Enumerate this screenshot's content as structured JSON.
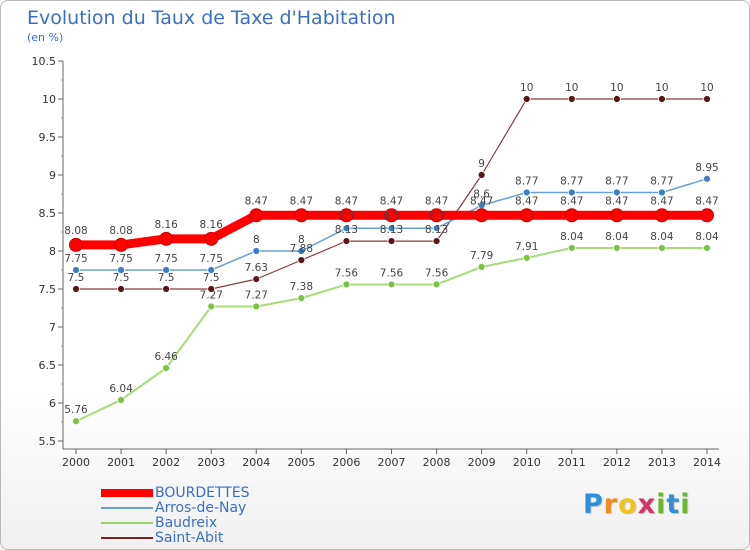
{
  "chart_data": {
    "type": "line",
    "title": "Evolution du Taux de Taxe d'Habitation",
    "subtitle": "(en %)",
    "x": [
      "2000",
      "2001",
      "2002",
      "2003",
      "2004",
      "2005",
      "2006",
      "2007",
      "2008",
      "2009",
      "2010",
      "2011",
      "2012",
      "2013",
      "2014"
    ],
    "ylim": [
      5.5,
      10.5
    ],
    "yticks": [
      "5.5",
      "6",
      "6.5",
      "7",
      "7.5",
      "8",
      "8.5",
      "9",
      "9.5",
      "10",
      "10.5"
    ],
    "grid": false,
    "legend_position": "bottom-left",
    "series": [
      {
        "name": "BOURDETTES",
        "color": "#ff0000",
        "values": [
          8.08,
          8.08,
          8.16,
          8.16,
          8.47,
          8.47,
          8.47,
          8.47,
          8.47,
          8.47,
          8.47,
          8.47,
          8.47,
          8.47,
          8.47
        ],
        "labels": [
          "8.08",
          "8.08",
          "8.16",
          "8.16",
          "8.47",
          "8.47",
          "8.47",
          "8.47",
          "8.47",
          "8.47",
          "8.47",
          "8.47",
          "8.47",
          "8.47",
          "8.47"
        ]
      },
      {
        "name": "Arros-de-Nay",
        "color": "#6aa0d4",
        "values": [
          7.75,
          7.75,
          7.75,
          7.75,
          8,
          8,
          8.3,
          8.3,
          8.3,
          8.6,
          8.77,
          8.77,
          8.77,
          8.77,
          8.95
        ],
        "labels": [
          "7.75",
          "7.75",
          "7.75",
          "7.75",
          "8",
          "8",
          "8.3",
          "8.3",
          "8.3",
          "8.6",
          "8.77",
          "8.77",
          "8.77",
          "8.77",
          "8.95"
        ]
      },
      {
        "name": "Baudreix",
        "color": "#99d36a",
        "values": [
          5.76,
          6.04,
          6.46,
          7.27,
          7.27,
          7.38,
          7.56,
          7.56,
          7.56,
          7.79,
          7.91,
          8.04,
          8.04,
          8.04,
          8.04
        ],
        "labels": [
          "5.76",
          "6.04",
          "6.46",
          "7.27",
          "7.27",
          "7.38",
          "7.56",
          "7.56",
          "7.56",
          "7.79",
          "7.91",
          "8.04",
          "8.04",
          "8.04",
          "8.04"
        ]
      },
      {
        "name": "Saint-Abit",
        "color": "#7a2323",
        "values": [
          7.5,
          7.5,
          7.5,
          7.5,
          7.63,
          7.88,
          8.13,
          8.13,
          8.13,
          9,
          10,
          10,
          10,
          10,
          10
        ],
        "labels": [
          "7.5",
          "7.5",
          "7.5",
          "7.5",
          "7.63",
          "7.88",
          "8.13",
          "8.13",
          "8.13",
          "9",
          "10",
          "10",
          "10",
          "10",
          "10"
        ]
      }
    ]
  },
  "logo": {
    "letters": [
      "P",
      "r",
      "o",
      "x",
      "i",
      "t",
      "i"
    ],
    "colors": [
      "#2f8fd8",
      "#f28b1d",
      "#f2c21d",
      "#d6336c",
      "#69b832",
      "#2f8fd8",
      "#69b832"
    ]
  }
}
